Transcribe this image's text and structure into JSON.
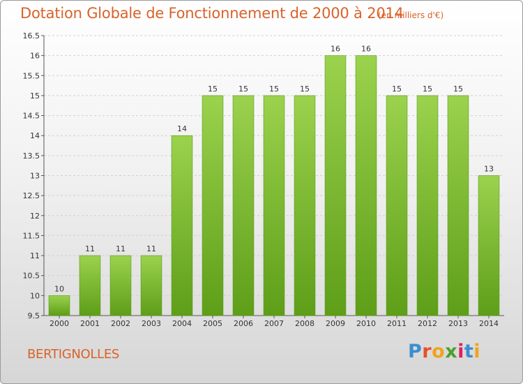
{
  "header": {
    "title": "Dotation Globale de Fonctionnement de 2000 à 2014",
    "unit": "(en milliers d'€)"
  },
  "footer": {
    "commune": "BERTIGNOLLES",
    "logo_letters": [
      "P",
      "r",
      "o",
      "x",
      "i",
      "t",
      "i"
    ],
    "logo_colors": [
      "#3a8fd0",
      "#e94f2b",
      "#f2a31c",
      "#4aa02c",
      "#e0205f",
      "#3a8fd0",
      "#f2a31c"
    ]
  },
  "chart_data": {
    "type": "bar",
    "categories": [
      "2000",
      "2001",
      "2002",
      "2003",
      "2004",
      "2005",
      "2006",
      "2007",
      "2008",
      "2009",
      "2010",
      "2011",
      "2012",
      "2013",
      "2014"
    ],
    "values": [
      10,
      11,
      11,
      11,
      14,
      15,
      15,
      15,
      15,
      16,
      16,
      15,
      15,
      15,
      13
    ],
    "data_labels": [
      "10",
      "11",
      "11",
      "11",
      "14",
      "15",
      "15",
      "15",
      "15",
      "16",
      "16",
      "15",
      "15",
      "15",
      "13"
    ],
    "title": "Dotation Globale de Fonctionnement de 2000 à 2014",
    "ylim": [
      9.5,
      16.5
    ],
    "yticks": [
      9.5,
      10,
      10.5,
      11,
      11.5,
      12,
      12.5,
      13,
      13.5,
      14,
      14.5,
      15,
      15.5,
      16,
      16.5
    ],
    "ytick_labels": [
      "9.5",
      "10",
      "10.5",
      "11",
      "11.5",
      "12",
      "12.5",
      "13",
      "13.5",
      "14",
      "14.5",
      "15",
      "15.5",
      "16",
      "16.5"
    ],
    "bar_color": "#7dc242",
    "grid": true
  }
}
